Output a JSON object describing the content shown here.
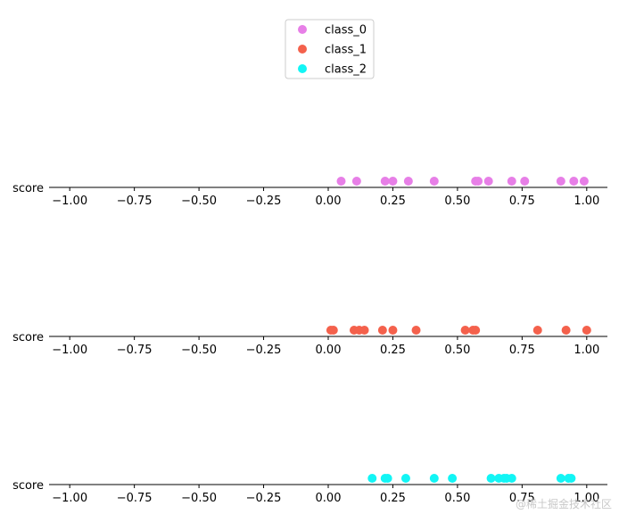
{
  "chart_data": [
    {
      "type": "scatter",
      "series": [
        {
          "name": "class_0",
          "color": "#e77fe7",
          "x": [
            0.05,
            0.11,
            0.22,
            0.25,
            0.31,
            0.41,
            0.57,
            0.58,
            0.62,
            0.71,
            0.76,
            0.9,
            0.95,
            0.99
          ]
        }
      ],
      "ylabel": "score",
      "xlim": [
        -1.08,
        1.08
      ],
      "xticks": [
        "−1.00",
        "−0.75",
        "−0.50",
        "−0.25",
        "0.00",
        "0.25",
        "0.50",
        "0.75",
        "1.00"
      ]
    },
    {
      "type": "scatter",
      "series": [
        {
          "name": "class_1",
          "color": "#f4614c",
          "x": [
            0.01,
            0.02,
            0.1,
            0.12,
            0.14,
            0.21,
            0.25,
            0.34,
            0.53,
            0.56,
            0.57,
            0.81,
            0.92,
            1.0
          ]
        }
      ],
      "ylabel": "score",
      "xlim": [
        -1.08,
        1.08
      ],
      "xticks": [
        "−1.00",
        "−0.75",
        "−0.50",
        "−0.25",
        "0.00",
        "0.25",
        "0.50",
        "0.75",
        "1.00"
      ]
    },
    {
      "type": "scatter",
      "series": [
        {
          "name": "class_2",
          "color": "#12f5f5",
          "x": [
            0.17,
            0.22,
            0.23,
            0.3,
            0.41,
            0.48,
            0.63,
            0.66,
            0.68,
            0.69,
            0.71,
            0.9,
            0.93,
            0.94
          ]
        }
      ],
      "ylabel": "score",
      "xlim": [
        -1.08,
        1.08
      ],
      "xticks": [
        "−1.00",
        "−0.75",
        "−0.50",
        "−0.25",
        "0.00",
        "0.25",
        "0.50",
        "0.75",
        "1.00"
      ]
    }
  ],
  "legend": {
    "placement": "top-center",
    "items": [
      {
        "label": "class_0",
        "color": "#e77fe7"
      },
      {
        "label": "class_1",
        "color": "#f4614c"
      },
      {
        "label": "class_2",
        "color": "#12f5f5"
      }
    ]
  },
  "watermark": "@稀土掘金技术社区"
}
